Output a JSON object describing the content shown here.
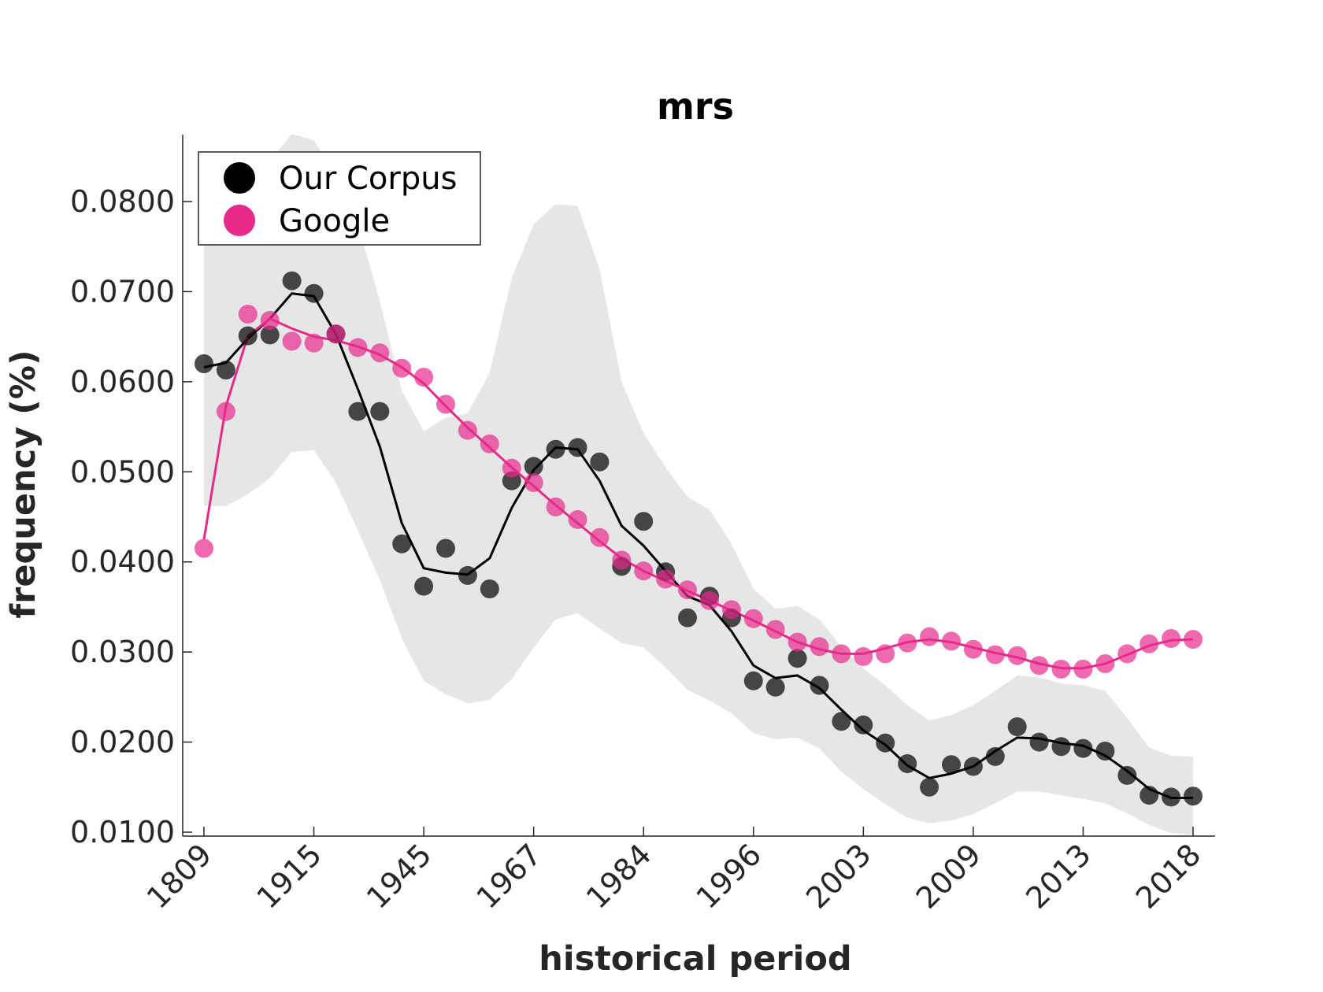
{
  "chart_data": {
    "type": "line",
    "title": "mrs",
    "xlabel": "historical period",
    "ylabel": "frequency (%)",
    "ylim": [
      0.0095,
      0.0875
    ],
    "yticks": [
      "0.0100",
      "0.0200",
      "0.0300",
      "0.0400",
      "0.0500",
      "0.0600",
      "0.0700",
      "0.0800"
    ],
    "ytick_values": [
      0.01,
      0.02,
      0.03,
      0.04,
      0.05,
      0.06,
      0.07,
      0.08
    ],
    "x_tick_labels": [
      "1809",
      "1915",
      "1945",
      "1967",
      "1984",
      "1996",
      "2003",
      "2009",
      "2013",
      "2018"
    ],
    "x_tick_index": [
      1,
      6,
      11,
      16,
      21,
      26,
      31,
      36,
      41,
      46
    ],
    "grid": false,
    "legend_position": "top-left",
    "x_index": [
      1,
      2,
      3,
      4,
      5,
      6,
      7,
      8,
      9,
      10,
      11,
      12,
      13,
      14,
      15,
      16,
      17,
      18,
      19,
      20,
      21,
      22,
      23,
      24,
      25,
      26,
      27,
      28,
      29,
      30,
      31,
      32,
      33,
      34,
      35,
      36,
      37,
      38,
      39,
      40,
      41,
      42,
      43,
      44,
      45,
      46
    ],
    "series": [
      {
        "name": "Our Corpus",
        "color": "#000000",
        "points": [
          0.062,
          0.0613,
          0.0651,
          0.0652,
          0.0712,
          0.0698,
          0.0653,
          0.0567,
          0.0567,
          0.042,
          0.0373,
          0.0415,
          0.0385,
          0.037,
          0.049,
          0.0506,
          0.0525,
          0.0527,
          0.0511,
          0.0395,
          0.0445,
          0.0389,
          0.0338,
          0.0362,
          0.0338,
          0.0268,
          0.0261,
          0.0293,
          0.0263,
          0.0223,
          0.0219,
          0.0199,
          0.0176,
          0.015,
          0.0175,
          0.0173,
          0.0184,
          0.0217,
          0.02,
          0.0195,
          0.0193,
          0.019,
          0.0163,
          0.0141,
          0.0139,
          0.014
        ],
        "smooth": [
          0.0616,
          0.0621,
          0.0648,
          0.067,
          0.0698,
          0.0695,
          0.0653,
          0.0592,
          0.0528,
          0.0443,
          0.0393,
          0.0388,
          0.0386,
          0.0404,
          0.046,
          0.0502,
          0.0527,
          0.0525,
          0.049,
          0.044,
          0.0418,
          0.039,
          0.0362,
          0.0352,
          0.0323,
          0.0285,
          0.0271,
          0.0274,
          0.026,
          0.0236,
          0.0213,
          0.0197,
          0.0174,
          0.016,
          0.0165,
          0.0173,
          0.019,
          0.0205,
          0.0204,
          0.0199,
          0.0196,
          0.0185,
          0.0168,
          0.0148,
          0.0138,
          0.0138
        ],
        "band_upper": [
          0.0775,
          0.08,
          0.082,
          0.0845,
          0.0875,
          0.0868,
          0.083,
          0.0775,
          0.069,
          0.059,
          0.0545,
          0.056,
          0.0565,
          0.061,
          0.0715,
          0.0775,
          0.0797,
          0.0795,
          0.0725,
          0.06,
          0.0543,
          0.0505,
          0.0472,
          0.0458,
          0.042,
          0.037,
          0.0348,
          0.0351,
          0.0336,
          0.0306,
          0.0282,
          0.0263,
          0.0241,
          0.0224,
          0.023,
          0.0241,
          0.0257,
          0.0274,
          0.0272,
          0.0265,
          0.0263,
          0.0257,
          0.0227,
          0.0194,
          0.0185,
          0.0184
        ],
        "band_lower": [
          0.0462,
          0.0462,
          0.0475,
          0.0493,
          0.0522,
          0.0524,
          0.0488,
          0.0435,
          0.038,
          0.0315,
          0.0268,
          0.0253,
          0.0243,
          0.0247,
          0.027,
          0.0305,
          0.0336,
          0.0343,
          0.0326,
          0.031,
          0.0305,
          0.0283,
          0.0258,
          0.0246,
          0.0232,
          0.021,
          0.0203,
          0.0205,
          0.0193,
          0.0167,
          0.0148,
          0.0131,
          0.0116,
          0.011,
          0.0113,
          0.012,
          0.0132,
          0.0145,
          0.0145,
          0.0141,
          0.0137,
          0.0132,
          0.0121,
          0.0108,
          0.0099,
          0.0097
        ]
      },
      {
        "name": "Google",
        "color": "#e7298a",
        "points": [
          0.0415,
          0.0567,
          0.0675,
          0.0668,
          0.0645,
          0.0643,
          0.0653,
          0.0638,
          0.0632,
          0.0615,
          0.0605,
          0.0575,
          0.0546,
          0.0531,
          0.0504,
          0.0488,
          0.0461,
          0.0447,
          0.0427,
          0.0402,
          0.039,
          0.0381,
          0.0369,
          0.0357,
          0.0347,
          0.0337,
          0.0325,
          0.0311,
          0.0306,
          0.0298,
          0.0295,
          0.0298,
          0.031,
          0.0317,
          0.0312,
          0.0303,
          0.0297,
          0.0296,
          0.0285,
          0.0281,
          0.0281,
          0.0287,
          0.0298,
          0.0309,
          0.0315,
          0.0314
        ],
        "smooth": [
          0.0425,
          0.0573,
          0.0651,
          0.067,
          0.0659,
          0.065,
          0.0646,
          0.0639,
          0.063,
          0.0616,
          0.0598,
          0.0573,
          0.0549,
          0.0527,
          0.0505,
          0.0484,
          0.0463,
          0.0443,
          0.0423,
          0.0404,
          0.039,
          0.0379,
          0.0368,
          0.0357,
          0.0346,
          0.0335,
          0.0323,
          0.0311,
          0.0303,
          0.0298,
          0.0298,
          0.0304,
          0.0311,
          0.0314,
          0.0311,
          0.0305,
          0.0299,
          0.0294,
          0.0287,
          0.0282,
          0.0282,
          0.0287,
          0.0297,
          0.0307,
          0.0313,
          0.0314
        ]
      }
    ]
  }
}
